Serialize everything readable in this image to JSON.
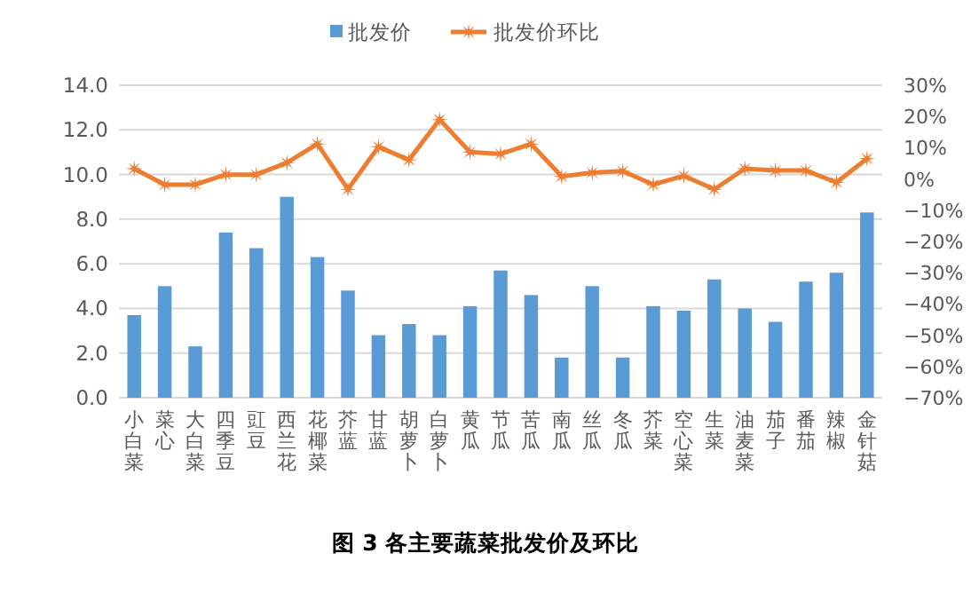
{
  "chart_data": {
    "type": "bar",
    "title": "图 3  各主要蔬菜批发价及环比",
    "categories": [
      "小白菜",
      "菜心",
      "大白菜",
      "四季豆",
      "豇豆",
      "西兰花",
      "花椰菜",
      "芥蓝",
      "甘蓝",
      "胡萝卜",
      "白萝卜",
      "黄瓜",
      "节瓜",
      "苦瓜",
      "南瓜",
      "丝瓜",
      "冬瓜",
      "芥菜",
      "空心菜",
      "生菜",
      "油麦菜",
      "茄子",
      "番茄",
      "辣椒",
      "金针菇"
    ],
    "series": [
      {
        "name": "批发价",
        "color": "#5b9bd5",
        "values": [
          3.7,
          5.0,
          2.3,
          7.4,
          6.7,
          9.0,
          6.3,
          4.8,
          2.8,
          3.3,
          2.8,
          4.1,
          5.7,
          4.6,
          1.8,
          5.0,
          1.8,
          4.1,
          3.9,
          5.3,
          4.0,
          3.4,
          5.2,
          5.6,
          8.3
        ]
      },
      {
        "name": "批发价环比",
        "type": "line",
        "axis": "y2",
        "color": "#ed7d31",
        "marker": "star",
        "values": [
          3.3,
          -1.8,
          -1.8,
          1.4,
          1.4,
          5.2,
          11.2,
          -3.3,
          10.3,
          6.1,
          19,
          8.6,
          8.0,
          11.2,
          0.8,
          2.0,
          2.5,
          -1.8,
          1.0,
          -3.3,
          3.3,
          2.7,
          2.7,
          -1.1,
          6.5
        ]
      }
    ],
    "ylim": [
      0,
      14
    ],
    "yticks": [
      {
        "value": 0,
        "label": "0.0"
      },
      {
        "value": 2,
        "label": "2.0"
      },
      {
        "value": 4,
        "label": "4.0"
      },
      {
        "value": 6,
        "label": "6.0"
      },
      {
        "value": 8,
        "label": "8.0"
      },
      {
        "value": 10,
        "label": "10.0"
      },
      {
        "value": 12,
        "label": "12.0"
      },
      {
        "value": 14,
        "label": "14.0"
      }
    ],
    "y2lim": [
      -70,
      30
    ],
    "y2ticks": [
      {
        "value": 30,
        "label": "30%"
      },
      {
        "value": 20,
        "label": "20%"
      },
      {
        "value": 10,
        "label": "10%"
      },
      {
        "value": 0,
        "label": "0%"
      },
      {
        "value": -10,
        "label": "−10%"
      },
      {
        "value": -20,
        "label": "−20%"
      },
      {
        "value": -30,
        "label": "−30%"
      },
      {
        "value": -40,
        "label": "−40%"
      },
      {
        "value": -50,
        "label": "−50%"
      },
      {
        "value": -60,
        "label": "−60%"
      },
      {
        "value": -70,
        "label": "−70%"
      }
    ],
    "grid": "y",
    "legend": "top"
  }
}
